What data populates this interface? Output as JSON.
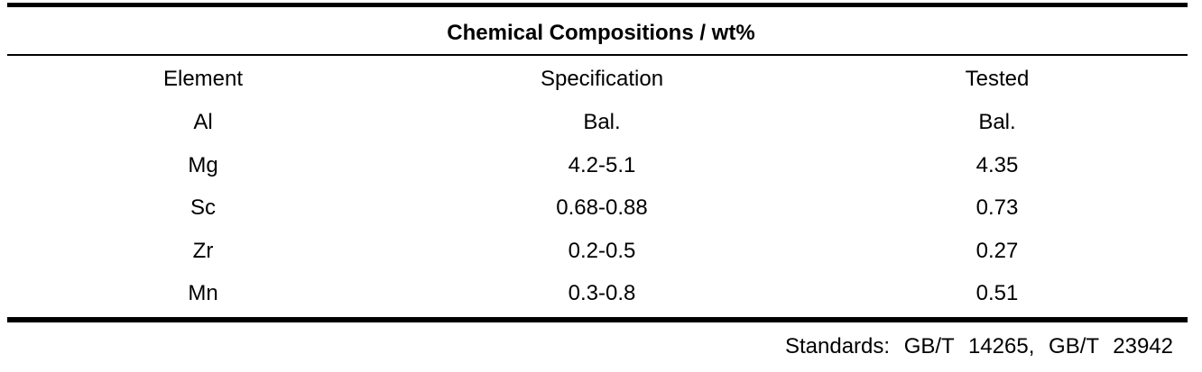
{
  "table": {
    "title": "Chemical Compositions / wt%",
    "columns": [
      "Element",
      "Specification",
      "Tested"
    ],
    "rows": [
      [
        "Al",
        "Bal.",
        "Bal."
      ],
      [
        "Mg",
        "4.2-5.1",
        "4.35"
      ],
      [
        "Sc",
        "0.68-0.88",
        "0.73"
      ],
      [
        "Zr",
        "0.2-0.5",
        "0.27"
      ],
      [
        "Mn",
        "0.3-0.8",
        "0.51"
      ]
    ]
  },
  "footer": {
    "standards": "Standards: GB/T 14265, GB/T 23942"
  }
}
